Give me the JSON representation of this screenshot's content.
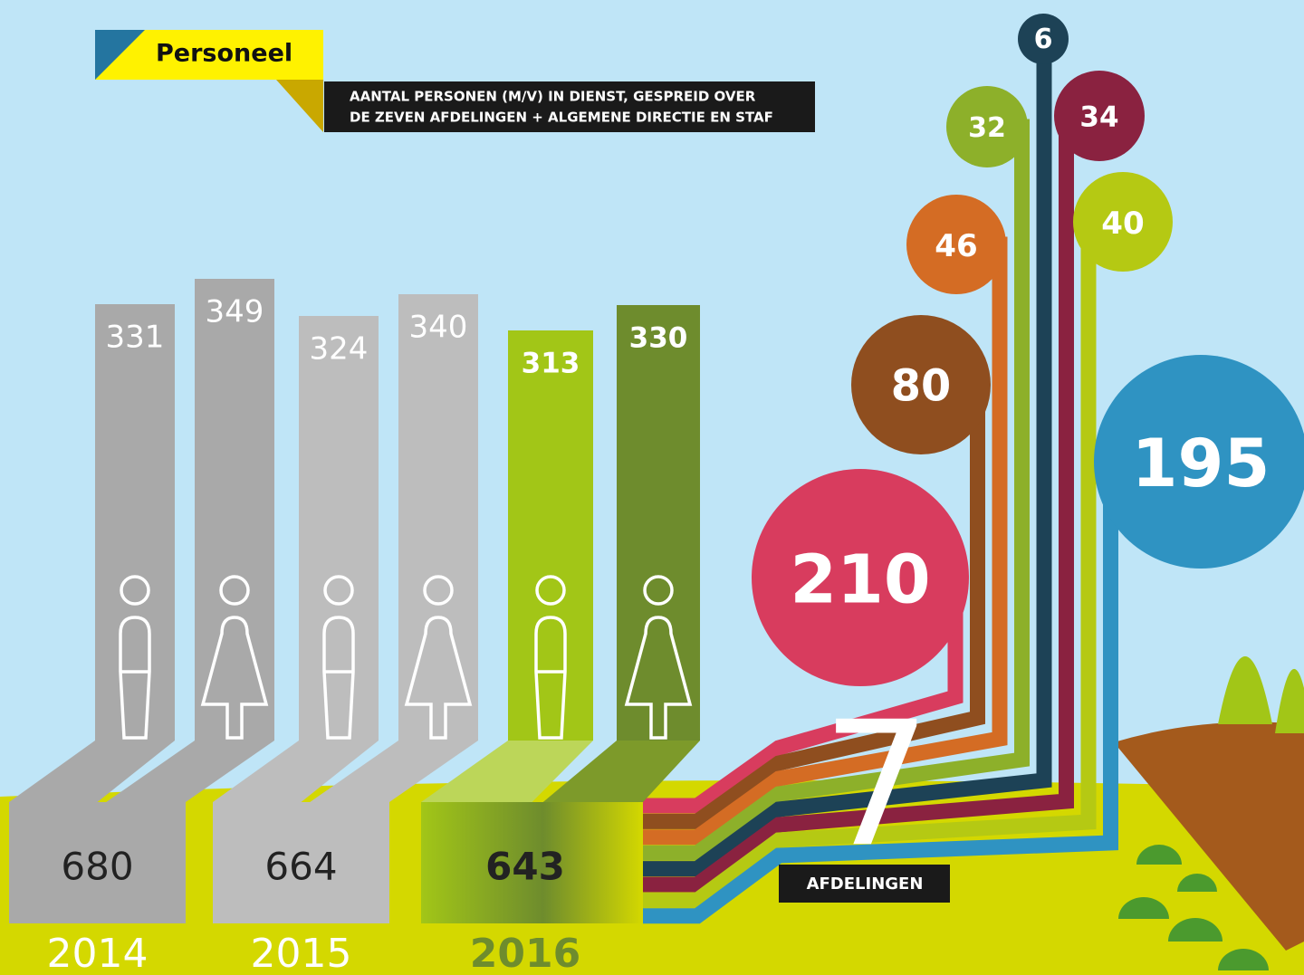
{
  "header": {
    "title": "Personeel",
    "subtitle_lines": [
      "AANTAL PERSONEN (M/V) IN DIENST, GESPREID OVER",
      "DE ZEVEN AFDELINGEN + ALGEMENE DIRECTIE EN STAF"
    ]
  },
  "years": [
    {
      "year": "2014",
      "male": 331,
      "female": 349,
      "total": 680
    },
    {
      "year": "2015",
      "male": 324,
      "female": 340,
      "total": 664
    },
    {
      "year": "2016",
      "male": 313,
      "female": 330,
      "total": 643
    }
  ],
  "departments": {
    "count": 7,
    "label": "AFDELINGEN",
    "values": [
      210,
      80,
      46,
      32,
      6,
      34,
      40,
      195
    ]
  }
}
